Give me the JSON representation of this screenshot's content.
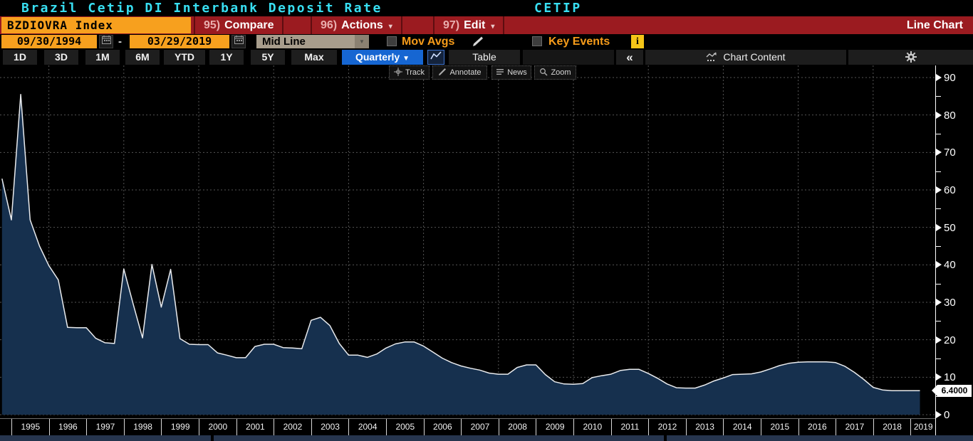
{
  "header": {
    "title": "Brazil Cetip DI Interbank Deposit Rate",
    "source_label": "CETIP"
  },
  "security_bar": {
    "ticker": "BZDIOVRA Index",
    "buttons": [
      {
        "num": "95)",
        "label": "Compare",
        "caret": ""
      },
      {
        "num": "96)",
        "label": "Actions",
        "caret": "▾"
      },
      {
        "num": "97)",
        "label": "Edit",
        "caret": "▾"
      }
    ],
    "chart_type_label": "Line Chart"
  },
  "controls": {
    "date_from": "09/30/1994",
    "date_separator": "-",
    "date_to": "03/29/2019",
    "field_selector": "Mid Line",
    "mov_avgs_label": "Mov Avgs",
    "key_events_label": "Key Events",
    "info_badge": "i"
  },
  "period_bar": {
    "tabs": [
      "1D",
      "3D",
      "1M",
      "6M",
      "YTD",
      "1Y",
      "5Y",
      "Max"
    ],
    "frequency": "Quarterly",
    "frequency_caret": "▼",
    "table_label": "Table",
    "collapse_label": "«",
    "chart_content_label": "Chart Content"
  },
  "chart_toolbar": {
    "buttons": [
      "Track",
      "Annotate",
      "News",
      "Zoom"
    ]
  },
  "chart_data": {
    "type": "area",
    "title": "Brazil Cetip DI Interbank Deposit Rate",
    "source": "CETIP",
    "series_name": "BZDIOVRA Index Mid Line",
    "frequency": "Quarterly",
    "ylim": [
      0,
      90
    ],
    "ytick_step": 10,
    "y_minor_step": 5,
    "x_years": [
      1995,
      1996,
      1997,
      1998,
      1999,
      2000,
      2001,
      2002,
      2003,
      2004,
      2005,
      2006,
      2007,
      2008,
      2009,
      2010,
      2011,
      2012,
      2013,
      2014,
      2015,
      2016,
      2017,
      2018,
      2019
    ],
    "gridline_years": [
      1996,
      1998,
      2000,
      2002,
      2004,
      2006,
      2008,
      2010,
      2012,
      2014,
      2016,
      2018
    ],
    "grid": true,
    "last_value_label": "6.4000",
    "last_value": 6.4,
    "colors": {
      "background": "#000000",
      "area_fill": "#16304e",
      "line": "#e9ebee",
      "gridline": "#545454",
      "axis": "#ffffff",
      "accent_orange": "#f7a01e",
      "bar_red": "#9b1b20",
      "title_cyan": "#38dff2",
      "highlight_blue": "#1666d2",
      "info_yellow": "#f5c518"
    },
    "points": [
      [
        1994.75,
        63.0
      ],
      [
        1995.0,
        52.0
      ],
      [
        1995.25,
        85.5
      ],
      [
        1995.5,
        52.0
      ],
      [
        1995.75,
        45.0
      ],
      [
        1996.0,
        39.8
      ],
      [
        1996.25,
        36.0
      ],
      [
        1996.5,
        23.3
      ],
      [
        1996.75,
        23.2
      ],
      [
        1997.0,
        23.2
      ],
      [
        1997.25,
        20.4
      ],
      [
        1997.5,
        19.2
      ],
      [
        1997.75,
        19.0
      ],
      [
        1998.0,
        38.9
      ],
      [
        1998.25,
        29.5
      ],
      [
        1998.5,
        20.5
      ],
      [
        1998.75,
        40.1
      ],
      [
        1999.0,
        28.7
      ],
      [
        1999.25,
        38.8
      ],
      [
        1999.5,
        20.3
      ],
      [
        1999.75,
        18.8
      ],
      [
        2000.0,
        18.7
      ],
      [
        2000.25,
        18.7
      ],
      [
        2000.5,
        16.5
      ],
      [
        2000.75,
        15.9
      ],
      [
        2001.0,
        15.2
      ],
      [
        2001.25,
        15.2
      ],
      [
        2001.5,
        18.2
      ],
      [
        2001.75,
        18.8
      ],
      [
        2002.0,
        18.8
      ],
      [
        2002.25,
        17.9
      ],
      [
        2002.5,
        17.8
      ],
      [
        2002.75,
        17.6
      ],
      [
        2003.0,
        25.2
      ],
      [
        2003.25,
        26.0
      ],
      [
        2003.5,
        23.8
      ],
      [
        2003.75,
        19.0
      ],
      [
        2004.0,
        15.9
      ],
      [
        2004.25,
        15.9
      ],
      [
        2004.5,
        15.3
      ],
      [
        2004.75,
        16.2
      ],
      [
        2005.0,
        17.8
      ],
      [
        2005.25,
        18.9
      ],
      [
        2005.5,
        19.4
      ],
      [
        2005.75,
        19.4
      ],
      [
        2006.0,
        18.3
      ],
      [
        2006.25,
        16.7
      ],
      [
        2006.5,
        15.1
      ],
      [
        2006.75,
        13.9
      ],
      [
        2007.0,
        13.0
      ],
      [
        2007.25,
        12.4
      ],
      [
        2007.5,
        11.9
      ],
      [
        2007.75,
        11.1
      ],
      [
        2008.0,
        10.8
      ],
      [
        2008.25,
        10.8
      ],
      [
        2008.5,
        12.6
      ],
      [
        2008.75,
        13.3
      ],
      [
        2009.0,
        13.3
      ],
      [
        2009.25,
        10.7
      ],
      [
        2009.5,
        8.8
      ],
      [
        2009.75,
        8.2
      ],
      [
        2010.0,
        8.1
      ],
      [
        2010.25,
        8.3
      ],
      [
        2010.5,
        9.9
      ],
      [
        2010.75,
        10.4
      ],
      [
        2011.0,
        10.8
      ],
      [
        2011.25,
        11.8
      ],
      [
        2011.5,
        12.1
      ],
      [
        2011.75,
        12.1
      ],
      [
        2012.0,
        11.0
      ],
      [
        2012.25,
        9.7
      ],
      [
        2012.5,
        8.2
      ],
      [
        2012.75,
        7.2
      ],
      [
        2013.0,
        7.1
      ],
      [
        2013.25,
        7.1
      ],
      [
        2013.5,
        7.9
      ],
      [
        2013.75,
        9.0
      ],
      [
        2014.0,
        9.8
      ],
      [
        2014.25,
        10.7
      ],
      [
        2014.5,
        10.8
      ],
      [
        2014.75,
        10.9
      ],
      [
        2015.0,
        11.4
      ],
      [
        2015.25,
        12.2
      ],
      [
        2015.5,
        13.1
      ],
      [
        2015.75,
        13.7
      ],
      [
        2016.0,
        14.0
      ],
      [
        2016.25,
        14.1
      ],
      [
        2016.5,
        14.1
      ],
      [
        2016.75,
        14.1
      ],
      [
        2017.0,
        13.9
      ],
      [
        2017.25,
        12.9
      ],
      [
        2017.5,
        11.3
      ],
      [
        2017.75,
        9.4
      ],
      [
        2018.0,
        7.3
      ],
      [
        2018.25,
        6.6
      ],
      [
        2018.5,
        6.4
      ],
      [
        2018.75,
        6.4
      ],
      [
        2019.0,
        6.4
      ],
      [
        2019.25,
        6.4
      ]
    ]
  }
}
